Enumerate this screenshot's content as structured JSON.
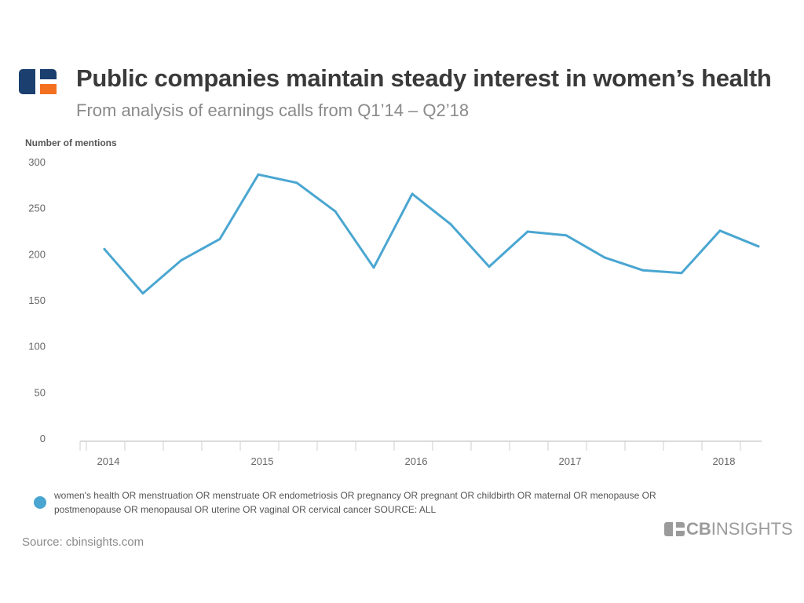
{
  "header": {
    "title": "Public companies maintain steady interest in women’s health",
    "subtitle": "From analysis of earnings calls from Q1’14 – Q2’18",
    "logo_icon": "cb-insights-logo-icon"
  },
  "chart_data": {
    "type": "line",
    "title": "Public companies maintain steady interest in women’s health",
    "subtitle": "From analysis of earnings calls from Q1’14 – Q2’18",
    "ylabel": "Number of mentions",
    "xlabel": "",
    "ylim": [
      0,
      300
    ],
    "yticks": [
      0,
      50,
      100,
      150,
      200,
      250,
      300
    ],
    "xtick_labels": [
      "2014",
      "2015",
      "2016",
      "2017",
      "2018"
    ],
    "grid": false,
    "legend_position": "bottom",
    "x": [
      "Q1'14",
      "Q2'14",
      "Q3'14",
      "Q4'14",
      "Q1'15",
      "Q2'15",
      "Q3'15",
      "Q4'15",
      "Q1'16",
      "Q2'16",
      "Q3'16",
      "Q4'16",
      "Q1'17",
      "Q2'17",
      "Q3'17",
      "Q4'17",
      "Q1'18",
      "Q2'18"
    ],
    "series": [
      {
        "name": "women's health OR menstruation OR menstruate OR endometriosis OR pregnancy OR pregnant OR childbirth OR maternal OR menopause OR postmenopause OR  menopausal OR uterine OR vaginal OR cervical cancer SOURCE: ALL",
        "color": "#4aa6d1",
        "values": [
          206,
          158,
          194,
          217,
          287,
          278,
          247,
          186,
          266,
          233,
          187,
          225,
          221,
          197,
          183,
          180,
          226,
          209
        ]
      }
    ]
  },
  "legend": {
    "line1": "women's health OR menstruation OR menstruate OR endometriosis OR pregnancy OR pregnant OR childbirth OR maternal OR menopause OR",
    "line2": "postmenopause OR  menopausal OR uterine OR vaginal OR cervical cancer SOURCE: ALL"
  },
  "footer": {
    "source": "Source: cbinsights.com",
    "brand_bold": "CB",
    "brand_rest": "INSIGHTS"
  },
  "colors": {
    "line": "#4aa6d1",
    "logo_blue": "#1b3f6e",
    "logo_orange": "#f37021"
  }
}
